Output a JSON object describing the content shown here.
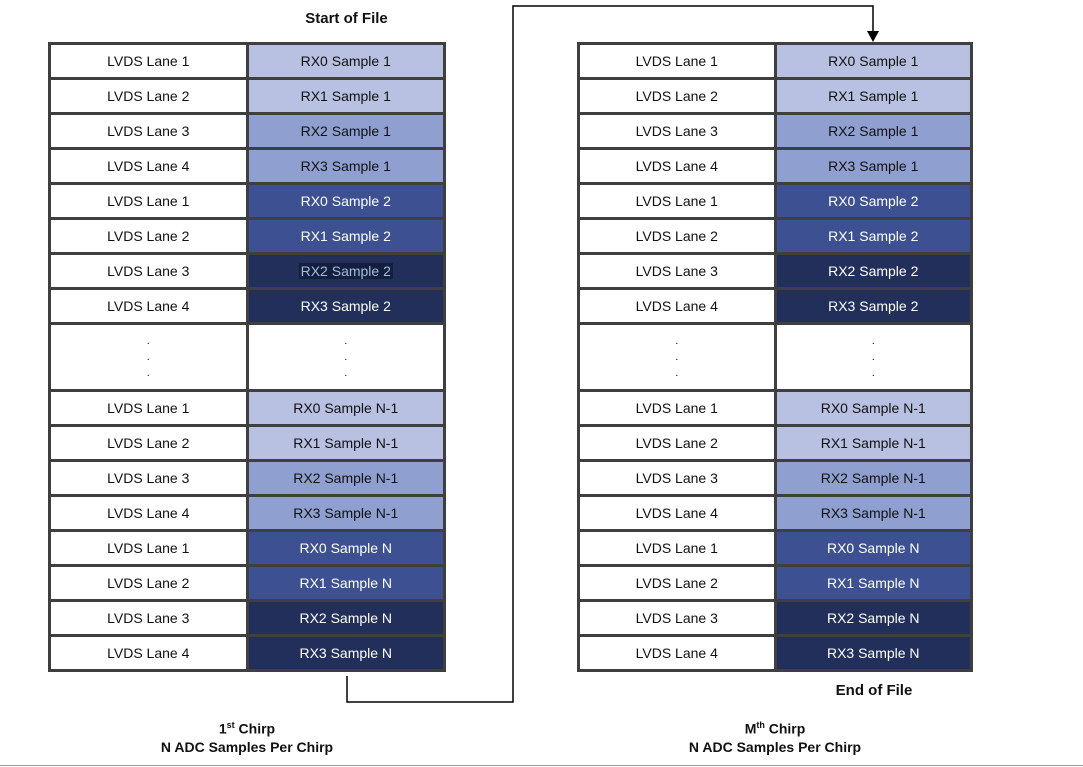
{
  "labels": {
    "start_of_file": "Start of File",
    "end_of_file": "End of File"
  },
  "captions": {
    "left": {
      "ordinal": "1",
      "ordinal_sup": "st",
      "chirp_word": " Chirp",
      "line2": "N ADC Samples Per Chirp"
    },
    "right": {
      "ordinal": "M",
      "ordinal_sup": "th",
      "chirp_word": " Chirp",
      "line2": "N ADC Samples Per Chirp"
    }
  },
  "colors": {
    "c1": "#b8c1e1",
    "c2": "#8fa0d0",
    "c3": "#3d5192",
    "c4": "#222f5b",
    "text_on_light": "#111111",
    "text_on_dark": "#ffffff",
    "border": "#3f3f3f",
    "connector": "#000000",
    "highlight_bg": "#141f3e",
    "highlight_text": "#a3bcdf"
  },
  "dots": [
    ".",
    ".",
    "."
  ],
  "tables": {
    "left": {
      "rows": [
        {
          "lane": "LVDS Lane 1",
          "sample": "RX0 Sample 1",
          "shade": "c1"
        },
        {
          "lane": "LVDS Lane 2",
          "sample": "RX1 Sample 1",
          "shade": "c1"
        },
        {
          "lane": "LVDS Lane 3",
          "sample": "RX2 Sample 1",
          "shade": "c2"
        },
        {
          "lane": "LVDS Lane 4",
          "sample": "RX3 Sample 1",
          "shade": "c2"
        },
        {
          "lane": "LVDS Lane 1",
          "sample": "RX0 Sample 2",
          "shade": "c3"
        },
        {
          "lane": "LVDS Lane 2",
          "sample": "RX1 Sample 2",
          "shade": "c3"
        },
        {
          "lane": "LVDS Lane 3",
          "sample": "RX2 Sample 2",
          "shade": "c4",
          "highlighted": true
        },
        {
          "lane": "LVDS Lane 4",
          "sample": "RX3 Sample 2",
          "shade": "c4"
        },
        {
          "type": "dots"
        },
        {
          "lane": "LVDS Lane 1",
          "sample": "RX0 Sample N-1",
          "shade": "c1"
        },
        {
          "lane": "LVDS Lane 2",
          "sample": "RX1 Sample N-1",
          "shade": "c1"
        },
        {
          "lane": "LVDS Lane 3",
          "sample": "RX2 Sample N-1",
          "shade": "c2"
        },
        {
          "lane": "LVDS Lane 4",
          "sample": "RX3 Sample N-1",
          "shade": "c2"
        },
        {
          "lane": "LVDS Lane 1",
          "sample": "RX0 Sample N",
          "shade": "c3"
        },
        {
          "lane": "LVDS Lane 2",
          "sample": "RX1 Sample N",
          "shade": "c3"
        },
        {
          "lane": "LVDS Lane 3",
          "sample": "RX2 Sample N",
          "shade": "c4"
        },
        {
          "lane": "LVDS Lane 4",
          "sample": "RX3 Sample N",
          "shade": "c4"
        }
      ]
    },
    "right": {
      "rows": [
        {
          "lane": "LVDS Lane 1",
          "sample": "RX0 Sample 1",
          "shade": "c1"
        },
        {
          "lane": "LVDS Lane 2",
          "sample": "RX1 Sample 1",
          "shade": "c1"
        },
        {
          "lane": "LVDS Lane 3",
          "sample": "RX2 Sample 1",
          "shade": "c2"
        },
        {
          "lane": "LVDS Lane 4",
          "sample": "RX3 Sample 1",
          "shade": "c2"
        },
        {
          "lane": "LVDS Lane 1",
          "sample": "RX0 Sample 2",
          "shade": "c3"
        },
        {
          "lane": "LVDS Lane 2",
          "sample": "RX1 Sample 2",
          "shade": "c3"
        },
        {
          "lane": "LVDS Lane 3",
          "sample": "RX2 Sample 2",
          "shade": "c4"
        },
        {
          "lane": "LVDS Lane 4",
          "sample": "RX3 Sample 2",
          "shade": "c4"
        },
        {
          "type": "dots"
        },
        {
          "lane": "LVDS Lane 1",
          "sample": "RX0 Sample N-1",
          "shade": "c1"
        },
        {
          "lane": "LVDS Lane 2",
          "sample": "RX1 Sample N-1",
          "shade": "c1"
        },
        {
          "lane": "LVDS Lane 3",
          "sample": "RX2 Sample N-1",
          "shade": "c2"
        },
        {
          "lane": "LVDS Lane 4",
          "sample": "RX3 Sample N-1",
          "shade": "c2"
        },
        {
          "lane": "LVDS Lane 1",
          "sample": "RX0 Sample N",
          "shade": "c3"
        },
        {
          "lane": "LVDS Lane 2",
          "sample": "RX1 Sample N",
          "shade": "c3"
        },
        {
          "lane": "LVDS Lane 3",
          "sample": "RX2 Sample N",
          "shade": "c4"
        },
        {
          "lane": "LVDS Lane 4",
          "sample": "RX3 Sample N",
          "shade": "c4"
        }
      ]
    }
  }
}
